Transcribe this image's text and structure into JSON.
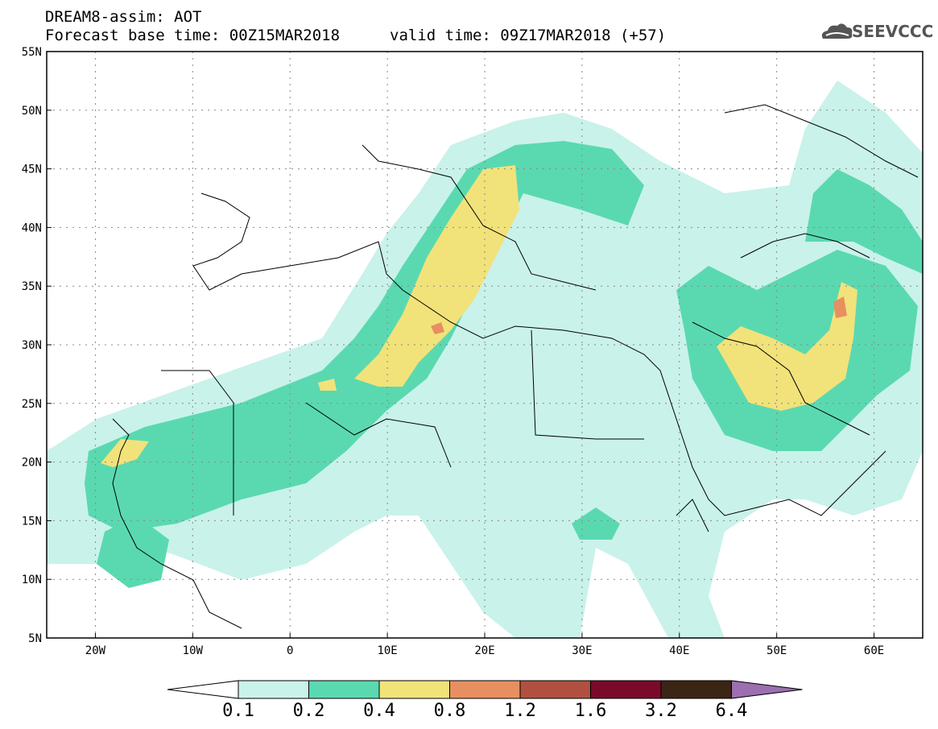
{
  "header": {
    "title": "DREAM8-assim: AOT",
    "base_time": "Forecast base time: 00Z15MAR2018",
    "valid_time": "valid time: 09Z17MAR2018 (+57)",
    "logo_text": "SEEVCCC"
  },
  "map": {
    "lon_range": [
      -25,
      65
    ],
    "lat_range": [
      5,
      55
    ],
    "x_ticks": [
      "20W",
      "10W",
      "0",
      "10E",
      "20E",
      "30E",
      "40E",
      "50E",
      "60E"
    ],
    "y_ticks": [
      "55N",
      "50N",
      "45N",
      "40N",
      "35N",
      "30N",
      "25N",
      "20N",
      "15N",
      "10N",
      "5N"
    ],
    "grid": "dotted"
  },
  "colorbar": {
    "labels": [
      "0.1",
      "0.2",
      "0.4",
      "0.8",
      "1.2",
      "1.6",
      "3.2",
      "6.4"
    ],
    "colors": [
      "#c9f2ea",
      "#5ad9b0",
      "#f2e27a",
      "#e88f60",
      "#b05040",
      "#7b0a2a",
      "#3b2515"
    ],
    "over_color": "#9b6fb0",
    "under_color": "#ffffff"
  }
}
